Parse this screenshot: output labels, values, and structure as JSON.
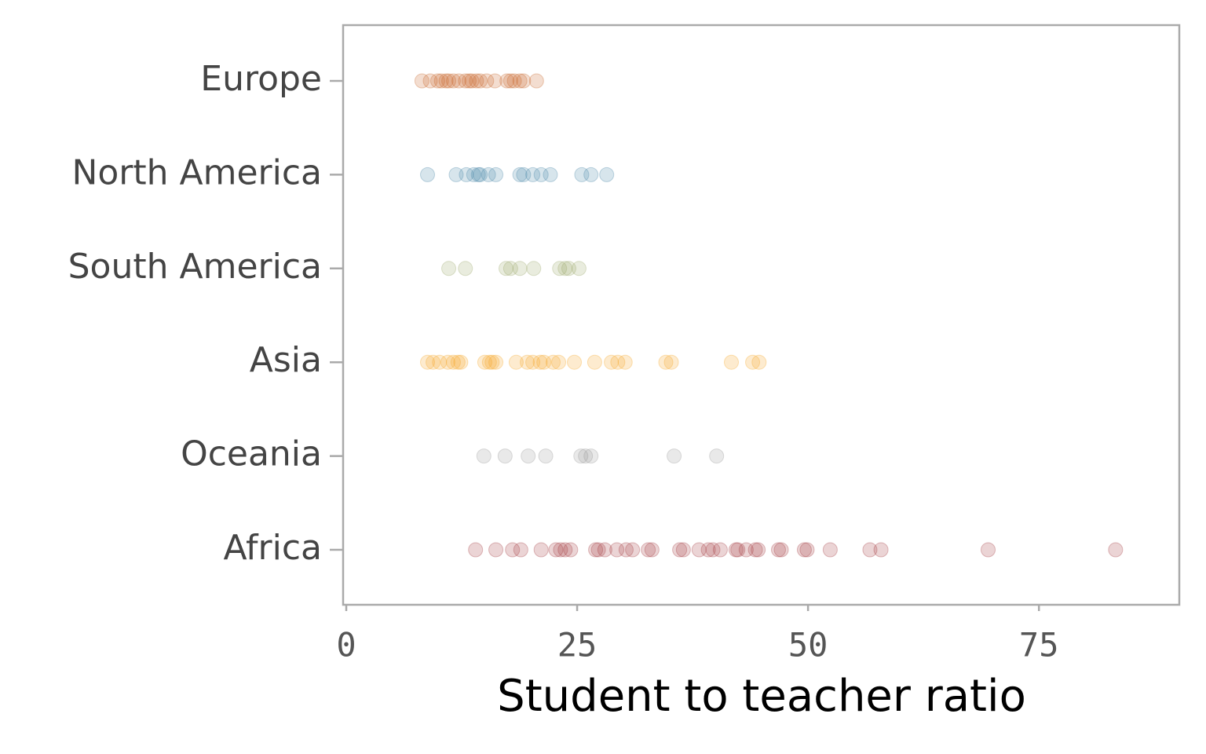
{
  "chart_data": {
    "type": "strip",
    "xlabel": "Student to teacher ratio",
    "xlim": [
      -0.34,
      90.2
    ],
    "xticks": [
      0,
      25,
      50,
      75
    ],
    "marker_opacity": 0.22,
    "series": [
      {
        "name": "Europe",
        "color": "#c8662a",
        "values": [
          8.2,
          9.1,
          9.9,
          10.3,
          10.8,
          11.1,
          11.6,
          12.2,
          12.9,
          13.3,
          13.6,
          14.1,
          14.5,
          15.2,
          16.1,
          17.4,
          17.8,
          18.2,
          18.8,
          19.2,
          20.6
        ]
      },
      {
        "name": "North America",
        "color": "#4a87a8",
        "values": [
          8.8,
          11.9,
          13.0,
          13.8,
          14.3,
          14.5,
          15.4,
          16.2,
          18.8,
          19.2,
          20.2,
          21.1,
          22.1,
          25.5,
          26.5,
          28.2
        ]
      },
      {
        "name": "South America",
        "color": "#9aa86a",
        "values": [
          11.1,
          12.9,
          17.3,
          17.8,
          18.8,
          20.3,
          23.1,
          23.7,
          24.1,
          25.2
        ]
      },
      {
        "name": "Asia",
        "color": "#f5a623",
        "values": [
          8.8,
          9.4,
          10.1,
          11.0,
          11.6,
          12.1,
          12.4,
          15.0,
          15.5,
          15.8,
          16.2,
          18.4,
          19.6,
          20.2,
          21.0,
          21.4,
          22.4,
          23.0,
          24.7,
          26.9,
          28.7,
          29.4,
          30.2,
          34.6,
          35.2,
          41.7,
          44.0,
          44.7
        ]
      },
      {
        "name": "Oceania",
        "color": "#999999",
        "values": [
          14.9,
          17.2,
          19.7,
          21.6,
          25.4,
          25.9,
          26.5,
          35.5,
          40.1
        ]
      },
      {
        "name": "Africa",
        "color": "#a33a3f",
        "values": [
          14.0,
          16.2,
          18.0,
          18.9,
          21.1,
          22.7,
          23.2,
          23.7,
          24.3,
          27.0,
          27.3,
          28.0,
          29.3,
          30.3,
          31.0,
          32.7,
          33.1,
          36.1,
          36.5,
          38.2,
          39.2,
          39.7,
          40.5,
          42.2,
          42.4,
          43.3,
          44.3,
          44.6,
          46.8,
          47.1,
          49.6,
          49.9,
          52.4,
          56.7,
          57.9,
          69.5,
          83.3
        ]
      }
    ]
  }
}
